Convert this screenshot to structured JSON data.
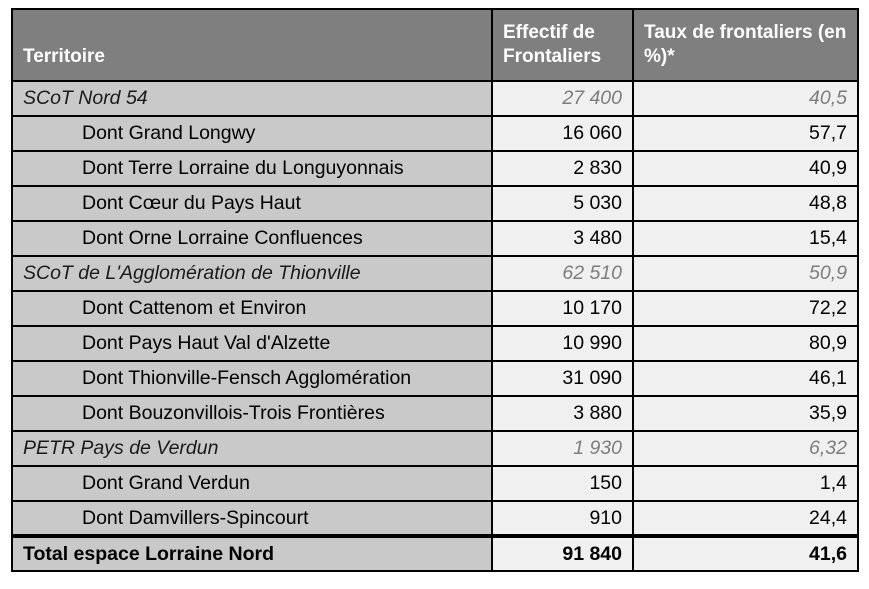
{
  "chart_data": {
    "type": "table",
    "columns": [
      "Territoire",
      "Effectif de Frontaliers",
      "Taux de frontaliers (en %)*"
    ],
    "rows": [
      {
        "territoire": "SCoT Nord 54",
        "effectif": 27400,
        "taux": 40.5,
        "level": "group"
      },
      {
        "territoire": "Dont Grand Longwy",
        "effectif": 16060,
        "taux": 57.7,
        "level": "sub"
      },
      {
        "territoire": "Dont Terre Lorraine du Longuyonnais",
        "effectif": 2830,
        "taux": 40.9,
        "level": "sub"
      },
      {
        "territoire": "Dont Cœur du Pays Haut",
        "effectif": 5030,
        "taux": 48.8,
        "level": "sub"
      },
      {
        "territoire": "Dont Orne Lorraine Confluences",
        "effectif": 3480,
        "taux": 15.4,
        "level": "sub"
      },
      {
        "territoire": "SCoT de L'Agglomération de Thionville",
        "effectif": 62510,
        "taux": 50.9,
        "level": "group"
      },
      {
        "territoire": "Dont Cattenom et Environ",
        "effectif": 10170,
        "taux": 72.2,
        "level": "sub"
      },
      {
        "territoire": "Dont Pays Haut Val d'Alzette",
        "effectif": 10990,
        "taux": 80.9,
        "level": "sub"
      },
      {
        "territoire": "Dont Thionville-Fensch Agglomération",
        "effectif": 31090,
        "taux": 46.1,
        "level": "sub"
      },
      {
        "territoire": "Dont Bouzonvillois-Trois Frontières",
        "effectif": 3880,
        "taux": 35.9,
        "level": "sub"
      },
      {
        "territoire": "PETR Pays de Verdun",
        "effectif": 1930,
        "taux": 6.32,
        "level": "group"
      },
      {
        "territoire": "Dont Grand Verdun",
        "effectif": 150,
        "taux": 1.4,
        "level": "sub"
      },
      {
        "territoire": "Dont Damvillers-Spincourt",
        "effectif": 910,
        "taux": 24.4,
        "level": "sub"
      }
    ],
    "total_row": {
      "territoire": "Total espace Lorraine Nord",
      "effectif": 91840,
      "taux": 41.6
    }
  },
  "table": {
    "header": {
      "territoire": "Territoire",
      "effectif": "Effectif de Frontaliers",
      "taux": "Taux de frontaliers (en %)*"
    },
    "rows": [
      {
        "territory": "SCoT Nord 54",
        "effectif": "27 400",
        "taux": "40,5",
        "type": "group"
      },
      {
        "territory": "Dont Grand Longwy",
        "effectif": "16 060",
        "taux": "57,7",
        "type": "sub"
      },
      {
        "territory": "Dont Terre Lorraine du Longuyonnais",
        "effectif": "2 830",
        "taux": "40,9",
        "type": "sub"
      },
      {
        "territory": "Dont Cœur du Pays Haut",
        "effectif": "5 030",
        "taux": "48,8",
        "type": "sub"
      },
      {
        "territory": "Dont Orne Lorraine Confluences",
        "effectif": "3 480",
        "taux": "15,4",
        "type": "sub"
      },
      {
        "territory": "SCoT de L'Agglomération de Thionville",
        "effectif": "62 510",
        "taux": "50,9",
        "type": "group"
      },
      {
        "territory": "Dont Cattenom et Environ",
        "effectif": "10 170",
        "taux": "72,2",
        "type": "sub"
      },
      {
        "territory": "Dont Pays Haut Val d'Alzette",
        "effectif": "10 990",
        "taux": "80,9",
        "type": "sub"
      },
      {
        "territory": "Dont Thionville-Fensch Agglomération",
        "effectif": "31 090",
        "taux": "46,1",
        "type": "sub"
      },
      {
        "territory": "Dont Bouzonvillois-Trois Frontières",
        "effectif": "3 880",
        "taux": "35,9",
        "type": "sub"
      },
      {
        "territory": "PETR Pays de Verdun",
        "effectif": "1 930",
        "taux": "6,32",
        "type": "group"
      },
      {
        "territory": "Dont Grand Verdun",
        "effectif": "150",
        "taux": "1,4",
        "type": "sub"
      },
      {
        "territory": "Dont Damvillers-Spincourt",
        "effectif": "910",
        "taux": "24,4",
        "type": "sub"
      }
    ],
    "total": {
      "territory": "Total espace Lorraine Nord",
      "effectif": "91 840",
      "taux": "41,6"
    }
  },
  "colors": {
    "header_bg": "#7f7f7f",
    "header_text": "#ffffff",
    "territory_col_bg": "#c9c9c9",
    "value_col_bg": "#f0f0f0",
    "group_value_text": "#7d7d7d",
    "border": "#000000"
  }
}
